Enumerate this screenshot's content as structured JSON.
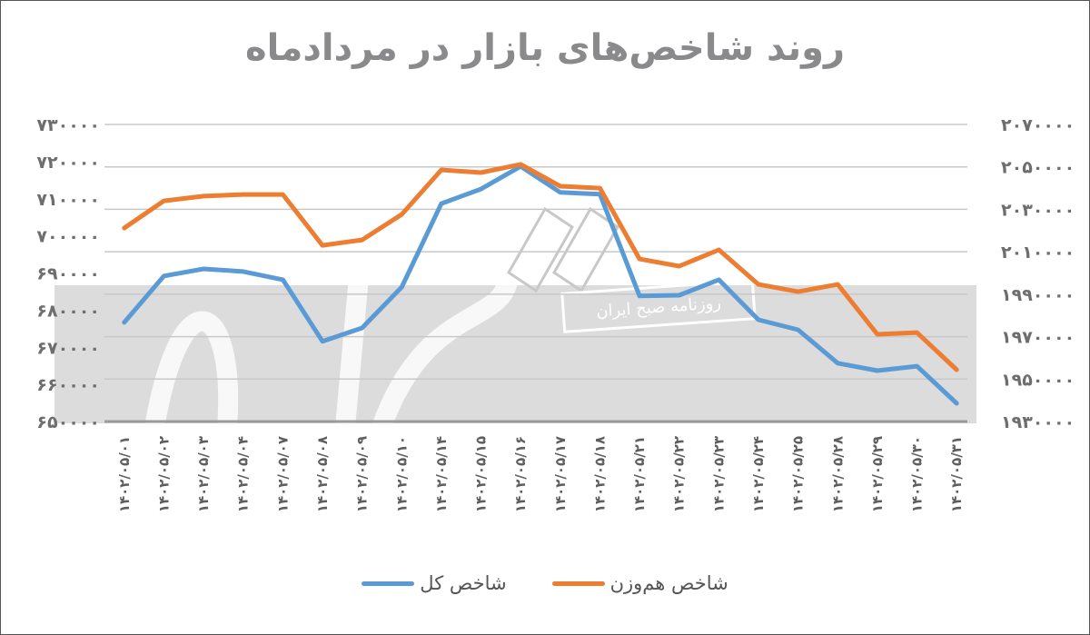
{
  "title": "روند شاخص‌های بازار در مردادماه",
  "legend": [
    {
      "label": "شاخص هم‌وزن",
      "color": "#ED7D31"
    },
    {
      "label": "شاخص کل",
      "color": "#5B9BD5"
    }
  ],
  "watermark": {
    "text": "روزنامه صبح ایران"
  },
  "chart_data": {
    "type": "line",
    "title": "روند شاخص‌های بازار در مردادماه",
    "xlabel": "",
    "ylabel": "",
    "grid": true,
    "legend_position": "bottom",
    "categories": [
      "۱۴۰۲/۰۵/۰۱",
      "۱۴۰۲/۰۵/۰۲",
      "۱۴۰۲/۰۵/۰۳",
      "۱۴۰۲/۰۵/۰۴",
      "۱۴۰۲/۰۵/۰۷",
      "۱۴۰۲/۰۵/۰۸",
      "۱۴۰۲/۰۵/۰۹",
      "۱۴۰۲/۰۵/۱۰",
      "۱۴۰۲/۰۵/۱۴",
      "۱۴۰۲/۰۵/۱۵",
      "۱۴۰۲/۰۵/۱۶",
      "۱۴۰۲/۰۵/۱۷",
      "۱۴۰۲/۰۵/۱۸",
      "۱۴۰۲/۰۵/۲۱",
      "۱۴۰۲/۰۵/۲۲",
      "۱۴۰۲/۰۵/۲۳",
      "۱۴۰۲/۰۵/۲۴",
      "۱۴۰۲/۰۵/۲۵",
      "۱۴۰۲/۰۵/۲۸",
      "۱۴۰۲/۰۵/۲۹",
      "۱۴۰۲/۰۵/۳۰",
      "۱۴۰۲/۰۵/۳۱"
    ],
    "y_left": {
      "ticks": [
        "۷۳۰۰۰۰",
        "۷۲۰۰۰۰",
        "۷۱۰۰۰۰",
        "۷۰۰۰۰۰",
        "۶۹۰۰۰۰",
        "۶۸۰۰۰۰",
        "۶۷۰۰۰۰",
        "۶۶۰۰۰۰",
        "۶۵۰۰۰۰"
      ],
      "ylim": [
        650000,
        730000
      ]
    },
    "y_right": {
      "ticks": [
        "۲۰۷۰۰۰۰",
        "۲۰۵۰۰۰۰",
        "۲۰۳۰۰۰۰",
        "۲۰۱۰۰۰۰",
        "۱۹۹۰۰۰۰",
        "۱۹۷۰۰۰۰",
        "۱۹۵۰۰۰۰",
        "۱۹۳۰۰۰۰"
      ],
      "ylim": [
        1930000,
        2070000
      ]
    },
    "series": [
      {
        "name": "شاخص کل",
        "axis": "left",
        "color": "#5B9BD5",
        "values": [
          676700,
          689200,
          691100,
          690400,
          688200,
          671600,
          675200,
          686200,
          708700,
          712600,
          718700,
          711700,
          711200,
          683800,
          684000,
          688200,
          677400,
          674700,
          665700,
          663700,
          664900,
          654900
        ]
      },
      {
        "name": "شاخص هم‌وزن",
        "axis": "right",
        "color": "#ED7D31",
        "values": [
          2021200,
          2034000,
          2036200,
          2037000,
          2037000,
          2013000,
          2015600,
          2027600,
          2048600,
          2047300,
          2051200,
          2040900,
          2040000,
          2006600,
          2003200,
          2010900,
          1994600,
          1991200,
          1994600,
          1971100,
          1971900,
          1954400
        ]
      }
    ]
  }
}
